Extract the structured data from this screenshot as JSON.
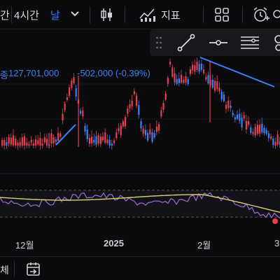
{
  "toolbar": {
    "frag_left": "간",
    "interval": "4시간",
    "range": "날",
    "indicator_label": "지표"
  },
  "price": {
    "frag_left": "종",
    "value": "127,701,000",
    "change": "-502,000 (-0.39%)"
  },
  "axis": {
    "labels": [
      "12월",
      "2025",
      "2월",
      "3"
    ]
  },
  "bottom": {
    "frag_left": "체"
  },
  "icons": {
    "chevron": "chevron-down-icon",
    "candles": "candlestick-icon",
    "indicator": "indicator-chart-icon",
    "grid": "grid-layout-icon",
    "alarm": "alarm-add-icon",
    "trendline": "trendline-tool-icon",
    "hline": "horizontal-line-tool-icon",
    "channel": "parallel-channel-tool-icon",
    "calendar": "calendar-arrow-icon"
  },
  "colors": {
    "up": "#e5404f",
    "down": "#3b82f6",
    "signal": "#d9d36a",
    "rsi": "#9a6fd6",
    "trend": "#3b82f6"
  }
}
